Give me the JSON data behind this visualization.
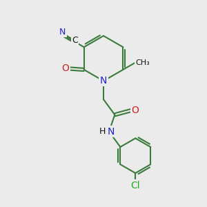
{
  "bg_color": "#ebebeb",
  "bond_color": "#3a7a3a",
  "n_color": "#2222cc",
  "o_color": "#cc2222",
  "cl_color": "#22aa22",
  "c_color": "#111111",
  "line_width": 1.5,
  "dbo": 0.07,
  "fig_w": 3.0,
  "fig_h": 3.0,
  "dpi": 100,
  "xlim": [
    0,
    10
  ],
  "ylim": [
    0,
    10
  ]
}
